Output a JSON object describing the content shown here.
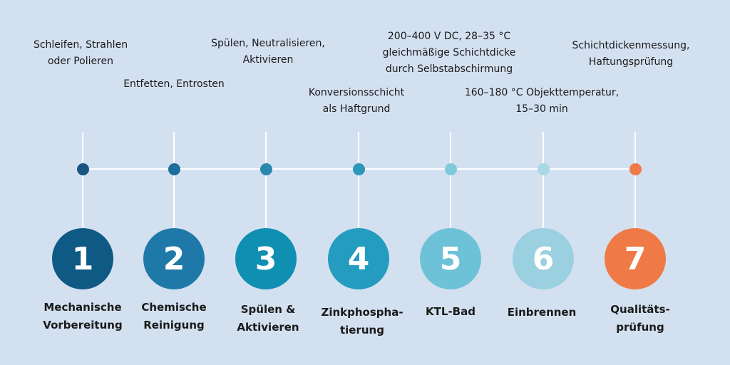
{
  "steps": [
    {
      "number": "1",
      "label": "Mechanische\nVorbereitung",
      "description": "Schleifen, Strahlen\noder Polieren",
      "color": "#0f5a85",
      "dot_color": "#17567f"
    },
    {
      "number": "2",
      "label": "Chemische\nReinigung",
      "description": "Entfetten, Entrosten",
      "color": "#1f79a8",
      "dot_color": "#1f6e99"
    },
    {
      "number": "3",
      "label": "Spülen &\nAktivieren",
      "description": "Spülen, Neutralisieren,\nAktivieren",
      "color": "#0f8fb2",
      "dot_color": "#2a88b0"
    },
    {
      "number": "4",
      "label": "Zinkphospha-\ntierung",
      "description": "Konversionsschicht\nals Haftgrund",
      "color": "#249cbf",
      "dot_color": "#2c97bb"
    },
    {
      "number": "5",
      "label": "KTL-Bad",
      "description": "200–400 V DC, 28–35 °C\ngleichmäßige Schichtdicke\ndurch Selbstabschirmung",
      "color": "#6ec2d8",
      "dot_color": "#7ec9dc"
    },
    {
      "number": "6",
      "label": "Einbrennen",
      "description": "160–180 °C Objekttemperatur,\n15–30 min",
      "color": "#9ad0e0",
      "dot_color": "#a9d8e6"
    },
    {
      "number": "7",
      "label": "Qualitäts-\nprüfung",
      "description": "Schichtdickenmessung,\nHaftungsprüfung",
      "color": "#ef7a45",
      "dot_color": "#ef7a45"
    }
  ]
}
